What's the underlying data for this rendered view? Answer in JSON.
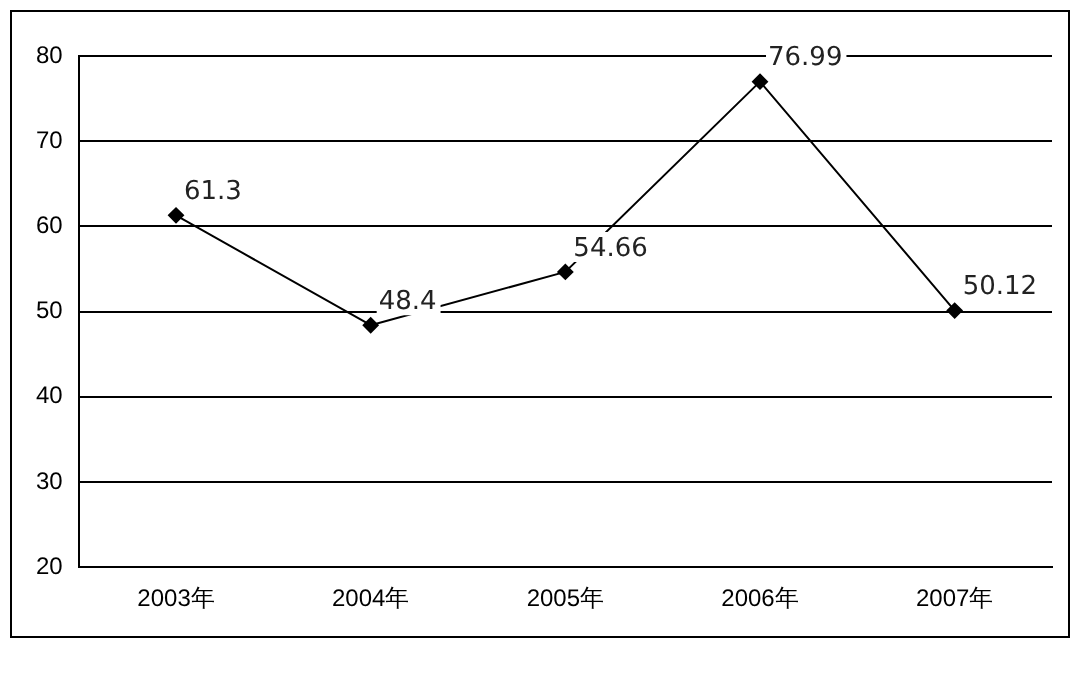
{
  "chart_data": {
    "type": "line",
    "categories": [
      "2003年",
      "2004年",
      "2005年",
      "2006年",
      "2007年"
    ],
    "series": [
      {
        "color": "#000000",
        "values": [
          61.3,
          48.4,
          54.66,
          76.99,
          50.12
        ]
      }
    ],
    "ylim": [
      20,
      80
    ],
    "yticks": [
      20,
      30,
      40,
      50,
      60,
      70,
      80
    ],
    "grid": "y",
    "legend": false,
    "marker": "diamond",
    "line_style": "solid",
    "data_labels": true
  }
}
